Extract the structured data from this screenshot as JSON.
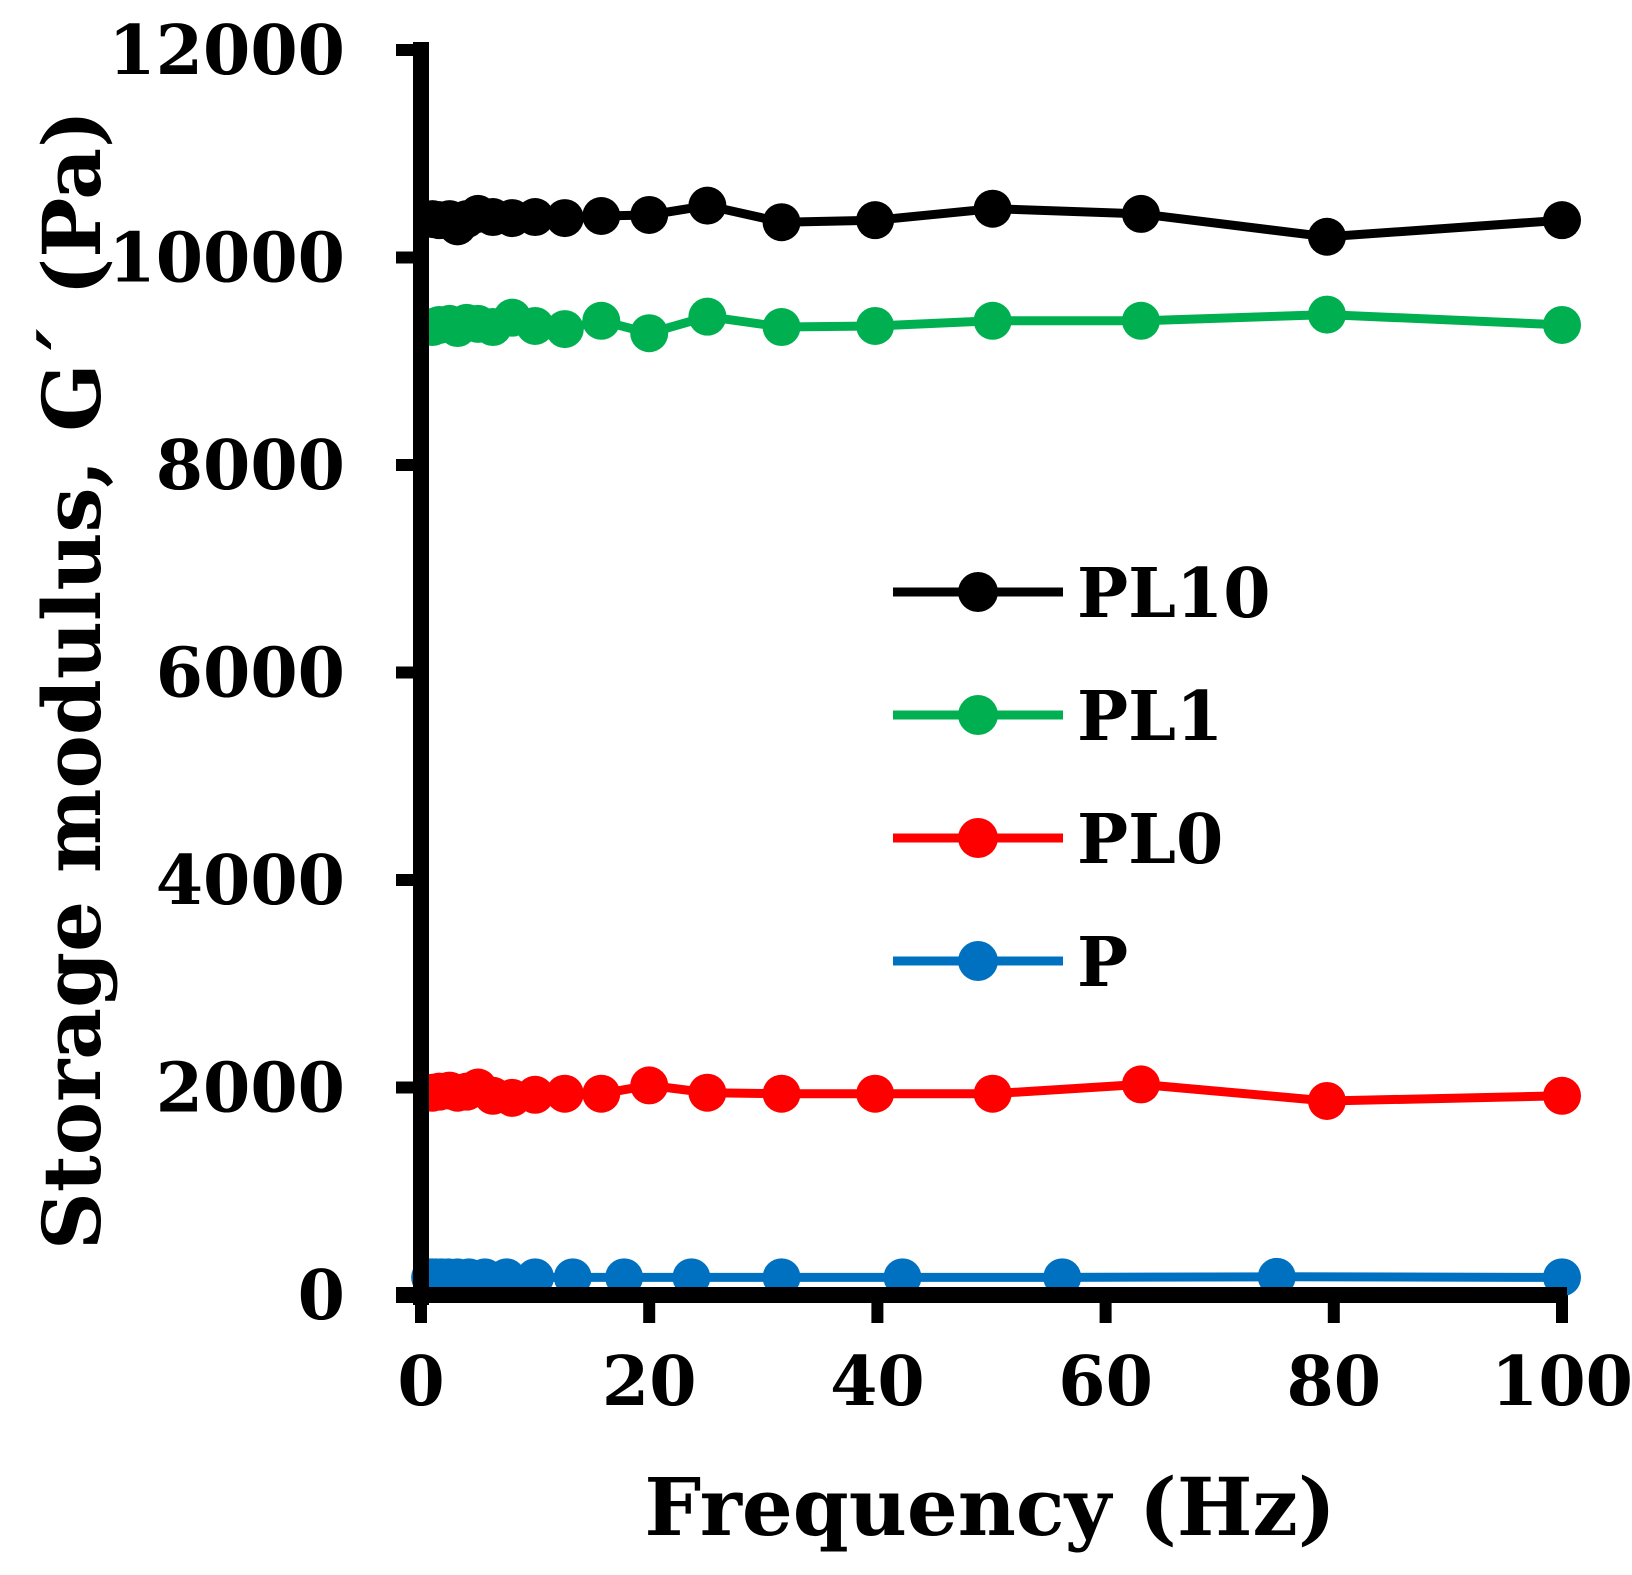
{
  "chart_data": {
    "type": "line",
    "title": "",
    "xlabel": "Frequency (Hz)",
    "ylabel": "Storage modulus, G´ (Pa)",
    "xlim": [
      0,
      100
    ],
    "ylim": [
      0,
      12000
    ],
    "xticks": [
      0,
      20,
      40,
      60,
      80,
      100
    ],
    "yticks": [
      0,
      2000,
      4000,
      6000,
      8000,
      10000,
      12000
    ],
    "grid": false,
    "legend_position": "center-right",
    "series": [
      {
        "name": "PL10",
        "color": "#000000",
        "x": [
          1,
          1.6,
          2.5,
          3.2,
          4,
          5,
          6.3,
          8,
          10,
          12.6,
          15.8,
          20,
          25.1,
          31.6,
          39.8,
          50.1,
          63.1,
          79.4,
          100
        ],
        "y": [
          10370,
          10360,
          10370,
          10300,
          10370,
          10420,
          10390,
          10380,
          10390,
          10380,
          10400,
          10410,
          10500,
          10340,
          10360,
          10470,
          10420,
          10200,
          10360
        ]
      },
      {
        "name": "PL1",
        "color": "#00b050",
        "x": [
          1,
          1.6,
          2.5,
          3.2,
          4,
          5,
          6.3,
          8,
          10,
          12.6,
          15.8,
          20,
          25.1,
          31.6,
          39.8,
          50.1,
          63.1,
          79.4,
          100
        ],
        "y": [
          9330,
          9350,
          9360,
          9320,
          9370,
          9360,
          9330,
          9420,
          9340,
          9310,
          9390,
          9270,
          9430,
          9330,
          9340,
          9390,
          9390,
          9450,
          9350
        ]
      },
      {
        "name": "PL0",
        "color": "#ff0000",
        "x": [
          1,
          1.6,
          2.5,
          3.2,
          4,
          5,
          6.3,
          8,
          10,
          12.6,
          15.8,
          20,
          25.1,
          31.6,
          39.8,
          50.1,
          63.1,
          79.4,
          100
        ],
        "y": [
          1950,
          1960,
          1970,
          1950,
          1960,
          2000,
          1920,
          1900,
          1930,
          1940,
          1940,
          2020,
          1950,
          1940,
          1940,
          1940,
          2030,
          1870,
          1920
        ]
      },
      {
        "name": "P",
        "color": "#0070c0",
        "x": [
          0.8,
          1,
          1.3,
          1.8,
          2.4,
          3.2,
          4.2,
          5.6,
          7.5,
          10,
          13.3,
          17.8,
          23.7,
          31.6,
          42.2,
          56.2,
          75,
          100
        ],
        "y": [
          170,
          170,
          170,
          170,
          170,
          170,
          170,
          170,
          170,
          170,
          170,
          170,
          170,
          170,
          170,
          170,
          175,
          170
        ]
      }
    ]
  }
}
